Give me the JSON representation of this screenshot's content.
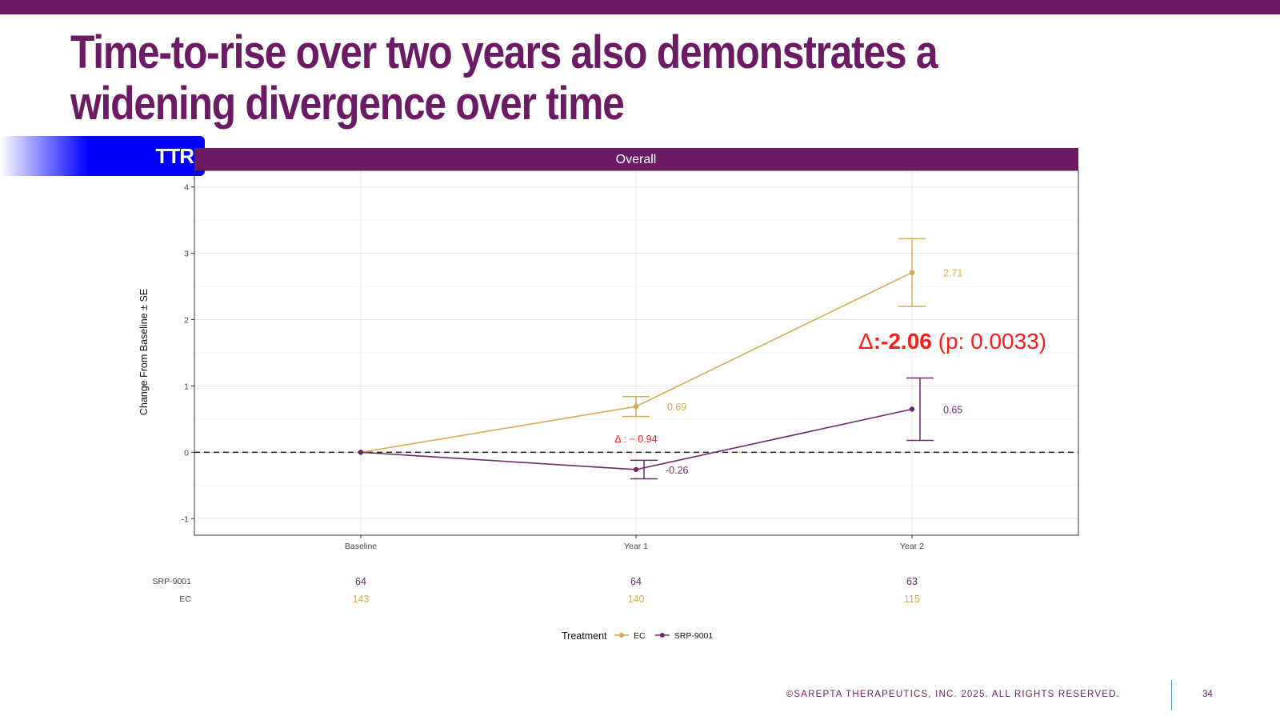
{
  "slide": {
    "title": "Time-to-rise over two years also demonstrates a widening divergence over time",
    "badge": "TTR",
    "footer": "©SAREPTA THERAPEUTICS, INC. 2025.  ALL RIGHTS RESERVED.",
    "page_number": "34"
  },
  "colors": {
    "brand_purple": "#6a1b63",
    "badge_blue": "#0000ff",
    "ec": "#d4aa52",
    "srp": "#6d2a6b",
    "delta_red": "#ff1a1a"
  },
  "chart_data": {
    "type": "line",
    "panel_title": "Overall",
    "ylabel": "Change From Baseline ± SE",
    "categories": [
      "Baseline",
      "Year 1",
      "Year 2"
    ],
    "ylim": [
      -1.25,
      4.25
    ],
    "yticks": [
      -1,
      0,
      1,
      2,
      3,
      4
    ],
    "reference_line": 0,
    "grid": true,
    "series": [
      {
        "name": "EC",
        "color": "#d4aa52",
        "values": [
          0,
          0.69,
          2.71
        ],
        "se_low": [
          0,
          0.54,
          2.2
        ],
        "se_high": [
          0,
          0.84,
          3.22
        ],
        "labels": [
          "",
          "0.69",
          "2.71"
        ]
      },
      {
        "name": "SRP-9001",
        "color": "#6d2a6b",
        "values": [
          0,
          -0.26,
          0.65
        ],
        "se_low": [
          0,
          -0.4,
          0.18
        ],
        "se_high": [
          0,
          -0.12,
          1.12
        ],
        "labels": [
          "",
          "-0.26",
          "0.65"
        ]
      }
    ],
    "annotations": {
      "year1_delta": "Δ : − 0.94",
      "year2_delta_symbol": "Δ",
      "year2_delta_value": ":-2.06",
      "year2_delta_p": " (p: 0.0033)"
    },
    "risk_table": {
      "rows": [
        {
          "name": "SRP-9001",
          "counts": [
            "64",
            "64",
            "63"
          ],
          "color": "#6d2a6b"
        },
        {
          "name": "EC",
          "counts": [
            "143",
            "140",
            "115"
          ],
          "color": "#d4aa52"
        }
      ]
    },
    "legend": {
      "title": "Treatment",
      "position": "bottom",
      "items": [
        "EC",
        "SRP-9001"
      ]
    }
  }
}
